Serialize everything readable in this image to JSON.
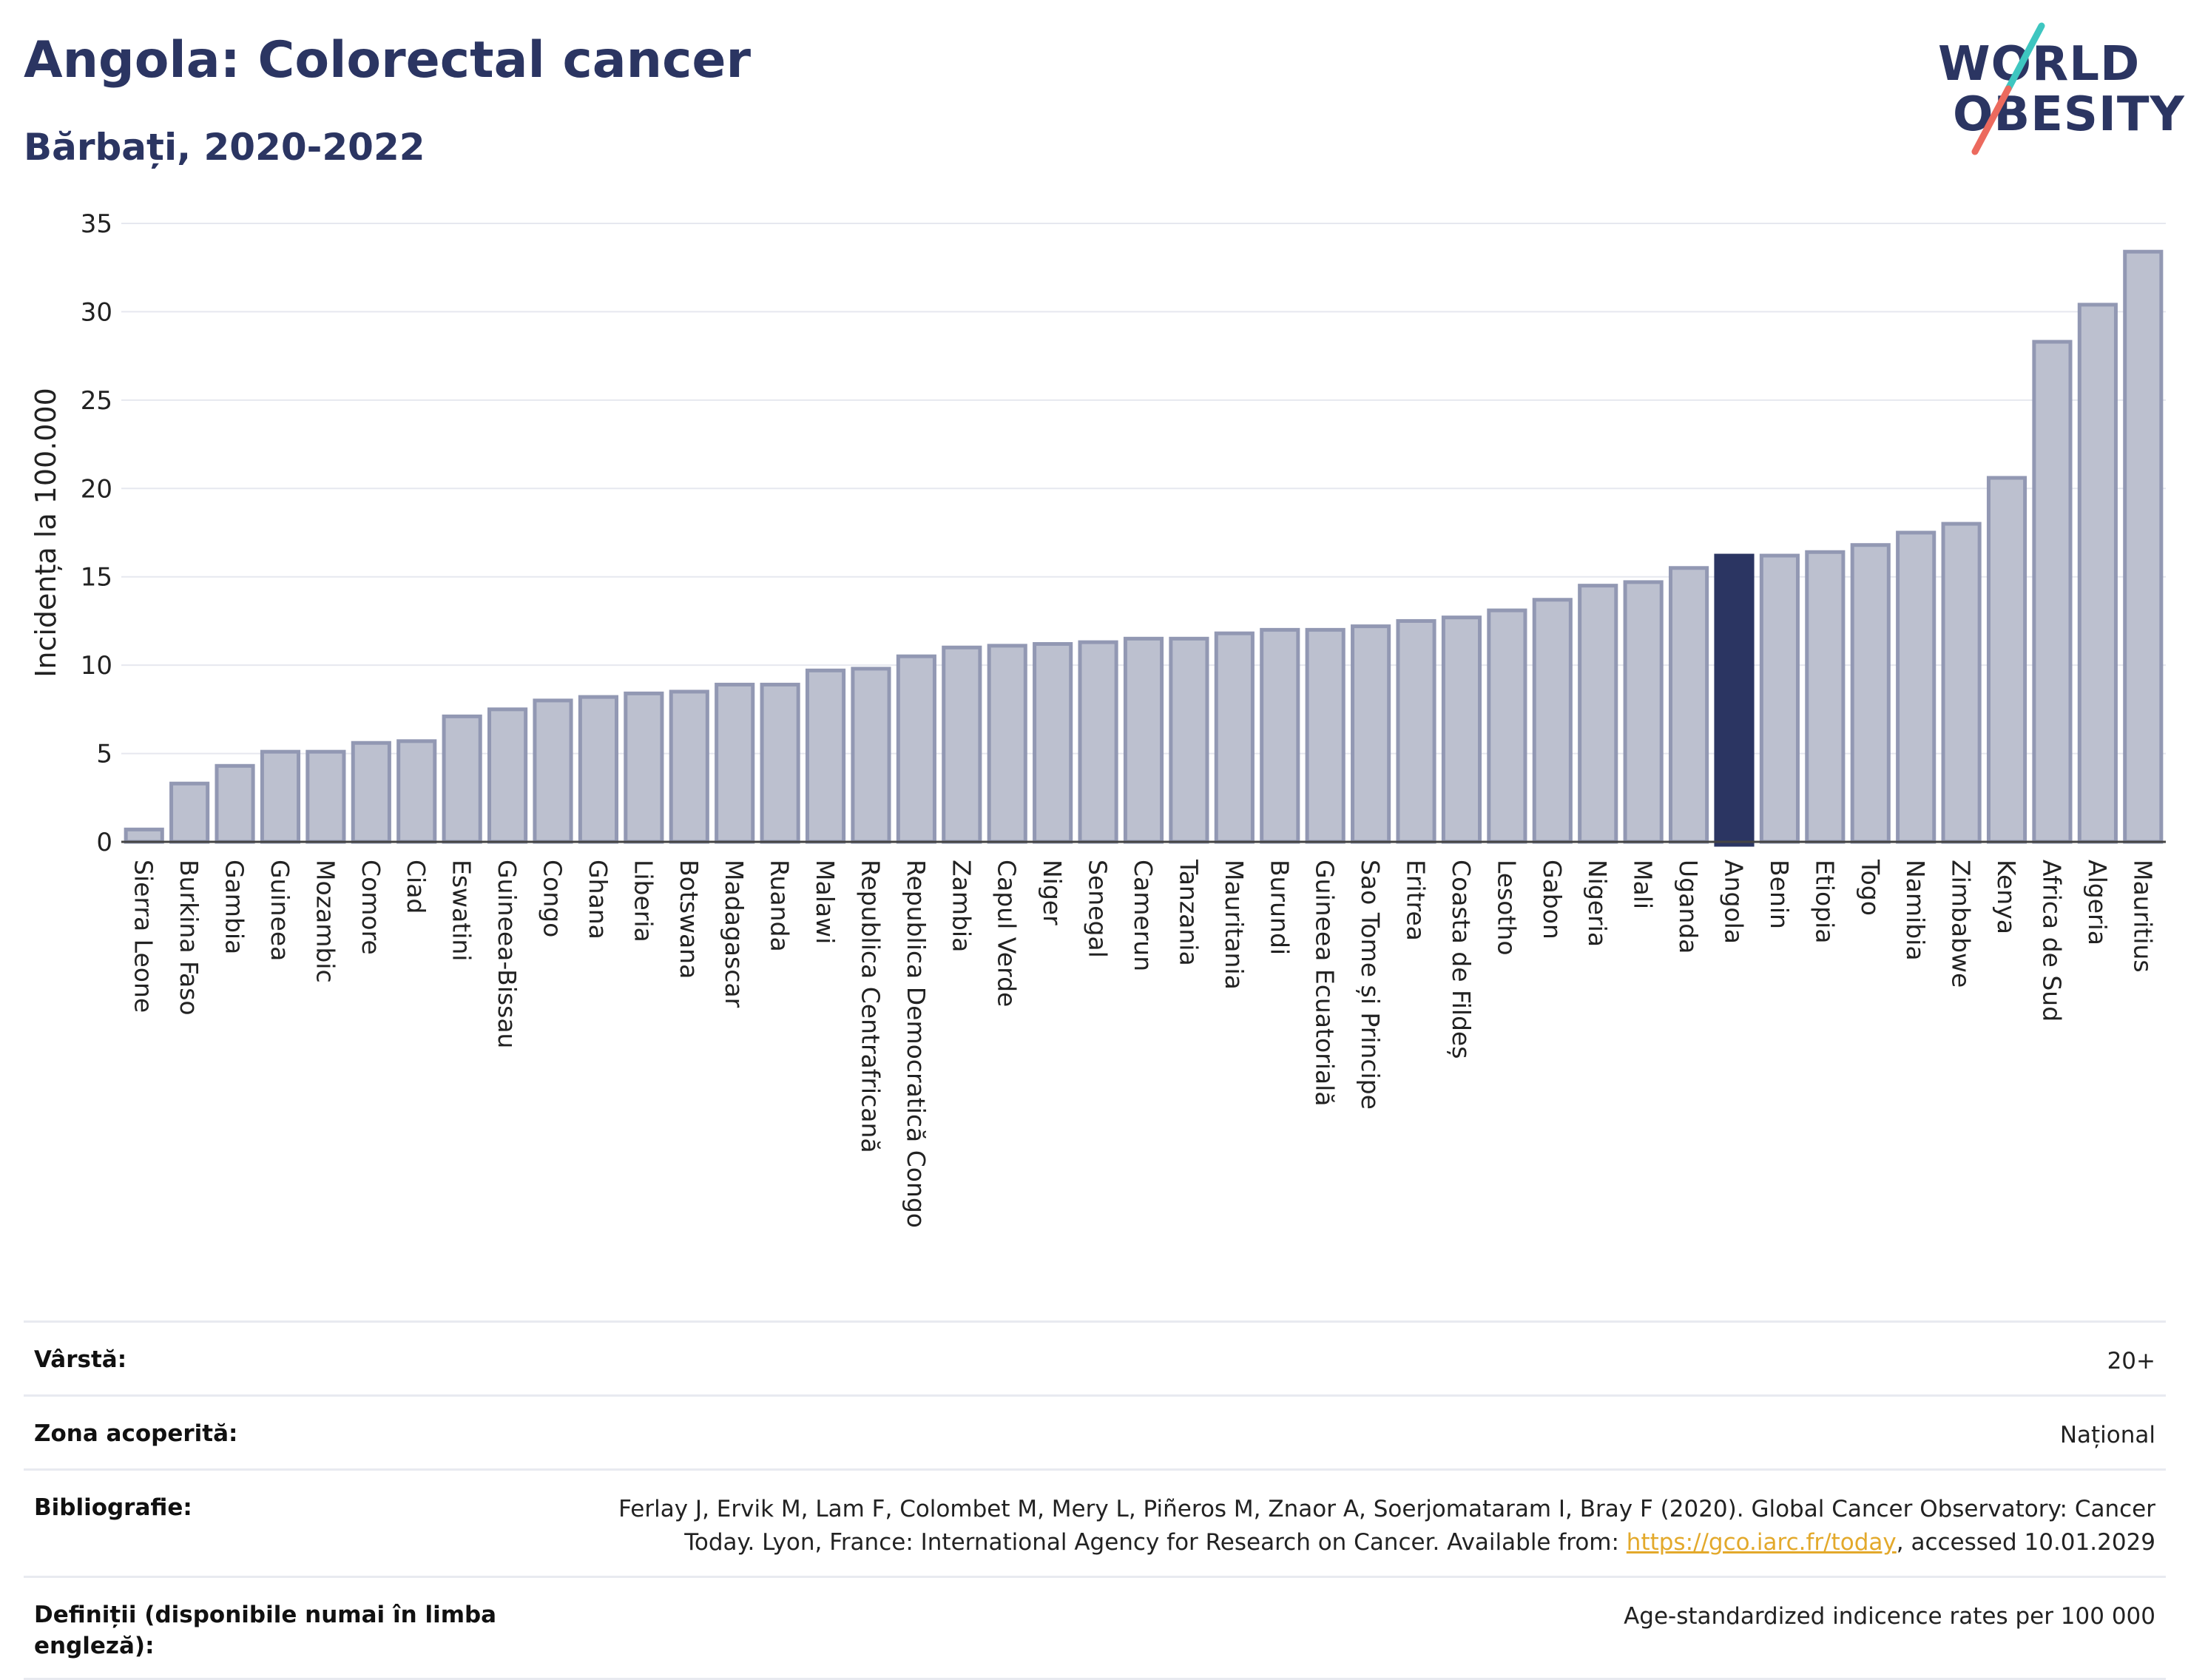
{
  "header": {
    "title": "Angola: Colorectal cancer",
    "subtitle": "Bărbați, 2020-2022",
    "logo_line1": "WORLD",
    "logo_line2": "OBESITY"
  },
  "colors": {
    "bar_fill": "#bcc0cf",
    "bar_stroke": "#9298b3",
    "highlight": "#2b3562",
    "grid": "#e6e8ef",
    "title": "#2b3562",
    "logo_teal": "#3ec6c0",
    "logo_coral": "#ec6a5e",
    "link": "#e3a92b"
  },
  "chart_data": {
    "type": "bar",
    "title": "Angola: Colorectal cancer",
    "subtitle": "Bărbați, 2020-2022",
    "xlabel": "",
    "ylabel": "Incidența la 100.000",
    "ylim": [
      0,
      35
    ],
    "yticks": [
      0,
      5,
      10,
      15,
      20,
      25,
      30,
      35
    ],
    "grid": true,
    "highlight": "Angola",
    "categories": [
      "Sierra Leone",
      "Burkina Faso",
      "Gambia",
      "Guineea",
      "Mozambic",
      "Comore",
      "Ciad",
      "Eswatini",
      "Guineea-Bissau",
      "Congo",
      "Ghana",
      "Liberia",
      "Botswana",
      "Madagascar",
      "Ruanda",
      "Malawi",
      "Republica Centrafricană",
      "Republica Democratică Congo",
      "Zambia",
      "Capul Verde",
      "Niger",
      "Senegal",
      "Camerun",
      "Tanzania",
      "Mauritania",
      "Burundi",
      "Guineea Ecuatorială",
      "Sao Tome și Principe",
      "Eritrea",
      "Coasta de Fildeș",
      "Lesotho",
      "Gabon",
      "Nigeria",
      "Mali",
      "Uganda",
      "Angola",
      "Benin",
      "Etiopia",
      "Togo",
      "Namibia",
      "Zimbabwe",
      "Kenya",
      "Africa de Sud",
      "Algeria",
      "Mauritius"
    ],
    "values": [
      0.7,
      3.3,
      4.3,
      5.1,
      5.1,
      5.6,
      5.7,
      7.1,
      7.5,
      8.0,
      8.2,
      8.4,
      8.5,
      8.9,
      8.9,
      9.7,
      9.8,
      10.5,
      11.0,
      11.1,
      11.2,
      11.3,
      11.5,
      11.5,
      11.8,
      12.0,
      12.0,
      12.2,
      12.5,
      12.7,
      13.1,
      13.7,
      14.5,
      14.7,
      15.5,
      16.2,
      16.2,
      16.4,
      16.8,
      17.5,
      18.0,
      20.6,
      28.3,
      30.4,
      33.4
    ]
  },
  "info_table": [
    {
      "label": "Vârstă:",
      "value": "20+"
    },
    {
      "label": "Zona acoperită:",
      "value": "Național"
    },
    {
      "label": "Bibliografie:",
      "value_line1": "Ferlay J, Ervik M, Lam F, Colombet M, Mery L, Piñeros M, Znaor A, Soerjomataram I, Bray F (2020). Global Cancer Observatory: Cancer",
      "value_line2_pre": "Today. Lyon, France: International Agency for Research on Cancer. Available from: ",
      "link": "https://gco.iarc.fr/today",
      "value_line2_post": ", accessed 10.01.2029"
    },
    {
      "label": "Definiții (disponibile numai în limba engleză):",
      "value": "Age-standardized indicence rates per 100 000"
    }
  ]
}
